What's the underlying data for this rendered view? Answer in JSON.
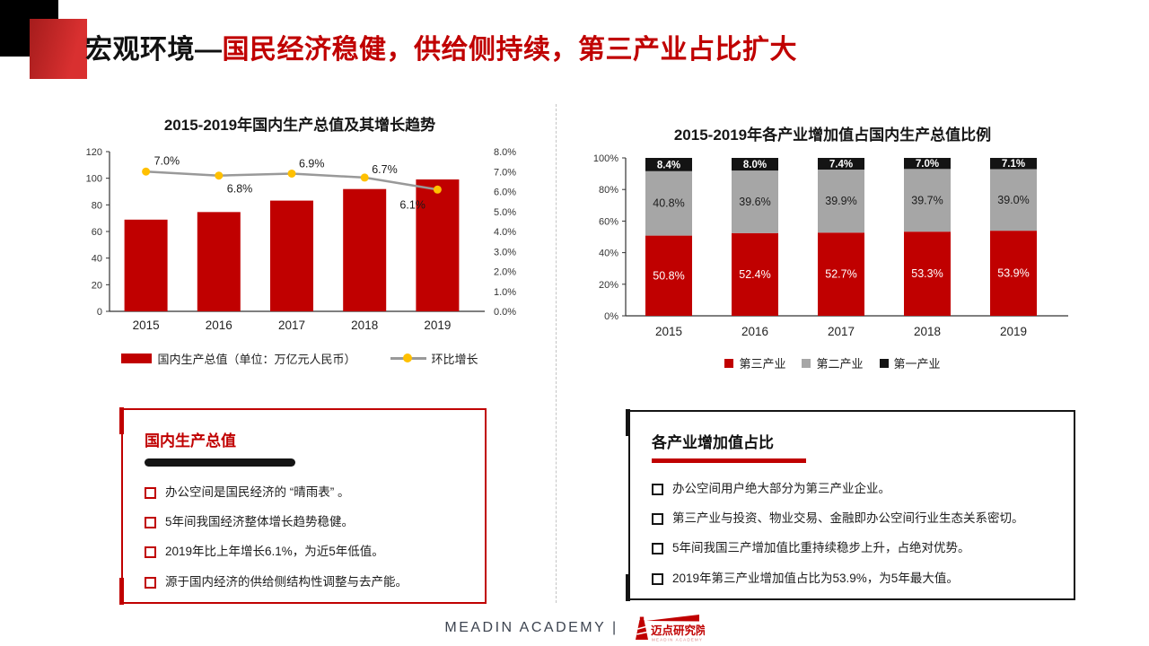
{
  "slide": {
    "title_black": "宏观环境—",
    "title_red": "国民经济稳健，供给侧持续，第三产业占比扩大"
  },
  "chart_data": [
    {
      "type": "bar",
      "title": "2015-2019年国内生产总值及其增长趋势",
      "categories": [
        "2015",
        "2016",
        "2017",
        "2018",
        "2019"
      ],
      "series": [
        {
          "name": "国内生产总值（单位：万亿元人民币）",
          "kind": "bar",
          "values": [
            68.9,
            74.6,
            83.2,
            91.9,
            99.1
          ],
          "color": "#c00000",
          "axis": "left"
        },
        {
          "name": "环比增长",
          "kind": "line",
          "values": [
            7.0,
            6.8,
            6.9,
            6.7,
            6.1
          ],
          "labels": [
            "7.0%",
            "6.8%",
            "6.9%",
            "6.7%",
            "6.1%"
          ],
          "color": "#999999",
          "marker_color": "#ffc000",
          "axis": "right"
        }
      ],
      "left_axis": {
        "min": 0,
        "max": 120,
        "step": 20,
        "suffix": ""
      },
      "right_axis": {
        "min": 0,
        "max": 8,
        "step": 1,
        "suffix": "%",
        "decimals": 1
      },
      "legend_position": "bottom",
      "grid": false
    },
    {
      "type": "bar",
      "subtype": "stacked",
      "title": "2015-2019年各产业增加值占国内生产总值比例",
      "categories": [
        "2015",
        "2016",
        "2017",
        "2018",
        "2019"
      ],
      "series": [
        {
          "name": "第三产业",
          "values": [
            50.8,
            52.4,
            52.7,
            53.3,
            53.9
          ],
          "labels": [
            "50.8%",
            "52.4%",
            "52.7%",
            "53.3%",
            "53.9%"
          ],
          "color": "#c00000",
          "label_color": "#ffffff",
          "label_bold": false
        },
        {
          "name": "第二产业",
          "values": [
            40.8,
            39.6,
            39.9,
            39.7,
            39.0
          ],
          "labels": [
            "40.8%",
            "39.6%",
            "39.9%",
            "39.7%",
            "39.0%"
          ],
          "color": "#a6a6a6",
          "label_color": "#1c1c1c",
          "label_bold": false
        },
        {
          "name": "第一产业",
          "values": [
            8.4,
            8.0,
            7.4,
            7.0,
            7.1
          ],
          "labels": [
            "8.4%",
            "8.0%",
            "7.4%",
            "7.0%",
            "7.1%"
          ],
          "color": "#141414",
          "label_color": "#ffffff",
          "label_bold": true
        }
      ],
      "y_axis": {
        "min": 0,
        "max": 100,
        "step": 20,
        "suffix": "%"
      },
      "legend_position": "bottom",
      "grid": false
    }
  ],
  "boxes": {
    "left": {
      "title": "国内生产总值",
      "bullets": [
        "办公空间是国民经济的 “晴雨表” 。",
        "5年间我国经济整体增长趋势稳健。",
        "2019年比上年增长6.1%，为近5年低值。",
        "源于国内经济的供给侧结构性调整与去产能。"
      ]
    },
    "right": {
      "title": "各产业增加值占比",
      "bullets": [
        "办公空间用户绝大部分为第三产业企业。",
        "第三产业与投资、物业交易、金融即办公空间行业生态关系密切。",
        "5年间我国三产增加值比重持续稳步上升，占绝对优势。",
        "2019年第三产业增加值占比为53.9%，为5年最大值。"
      ]
    }
  },
  "footer": {
    "brand": "MEADIN ACADEMY |",
    "logo_text": "迈点研究院",
    "logo_subtext": "MEADIN ACADEMY"
  },
  "colors": {
    "accent_red": "#c00000",
    "bar_gray": "#a6a6a6",
    "bar_black": "#141414",
    "line_gray": "#999999",
    "marker_orange": "#ffc000"
  }
}
